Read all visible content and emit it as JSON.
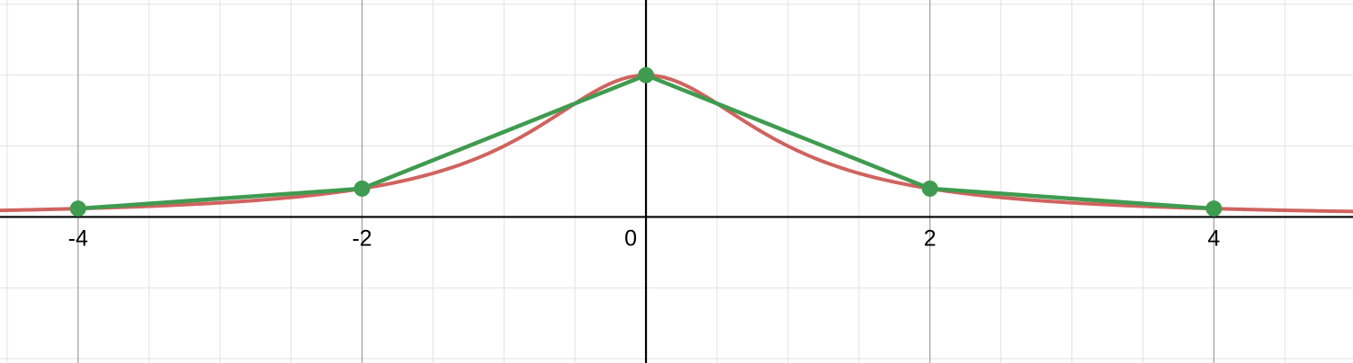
{
  "chart_data": {
    "type": "line",
    "title": "",
    "xlabel": "",
    "ylabel": "",
    "xlim": [
      -4.55,
      4.98
    ],
    "ylim": [
      -1.03,
      1.53
    ],
    "grid": true,
    "x_tick_labels": [
      {
        "value": -4,
        "label": "-4"
      },
      {
        "value": -2,
        "label": "-2"
      },
      {
        "value": 0,
        "label": "0"
      },
      {
        "value": 2,
        "label": "2"
      },
      {
        "value": 4,
        "label": "4"
      }
    ],
    "series": [
      {
        "kind": "curve",
        "color": "#d0635f",
        "formula": "1/(1+x^2)",
        "x_range": [
          -4.55,
          4.98
        ]
      },
      {
        "kind": "polyline-with-points",
        "color": "#3f9b4f",
        "x": [
          -4,
          -2,
          0,
          2,
          4
        ],
        "y": [
          0.0588,
          0.2,
          1,
          0.2,
          0.0588
        ]
      }
    ]
  }
}
